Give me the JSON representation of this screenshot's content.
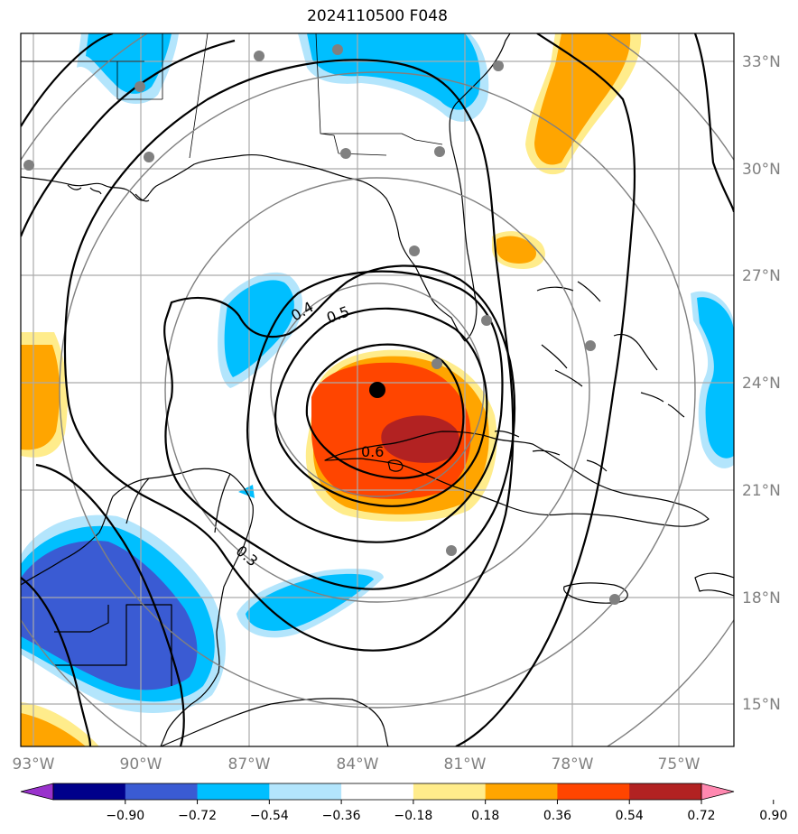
{
  "title": "2024110500 F048",
  "lon_labels": [
    "93°W",
    "90°W",
    "87°W",
    "84°W",
    "81°W",
    "78°W",
    "75°W"
  ],
  "lat_labels": [
    "33°N",
    "30°N",
    "27°N",
    "24°N",
    "21°N",
    "18°N",
    "15°N"
  ],
  "contour_labels": [
    "0.3",
    "0.4",
    "0.5",
    "0.6"
  ],
  "colorbar": {
    "ticks": [
      "−0.90",
      "−0.72",
      "−0.54",
      "−0.36",
      "−0.18",
      "0.18",
      "0.36",
      "0.54",
      "0.72",
      "0.90"
    ],
    "colors": [
      "#9932cc",
      "#00008b",
      "#3a5bd3",
      "#00bfff",
      "#b3e5fc",
      "#ffffff",
      "#ffec8b",
      "#ffa500",
      "#ff4500",
      "#b22222",
      "#ff88b0"
    ]
  },
  "colors": {
    "grid": "#aaaaaa",
    "range_rings": "#808080",
    "stations": "#808080",
    "center_marker": "#000000",
    "axis_labels": "#808080"
  }
}
